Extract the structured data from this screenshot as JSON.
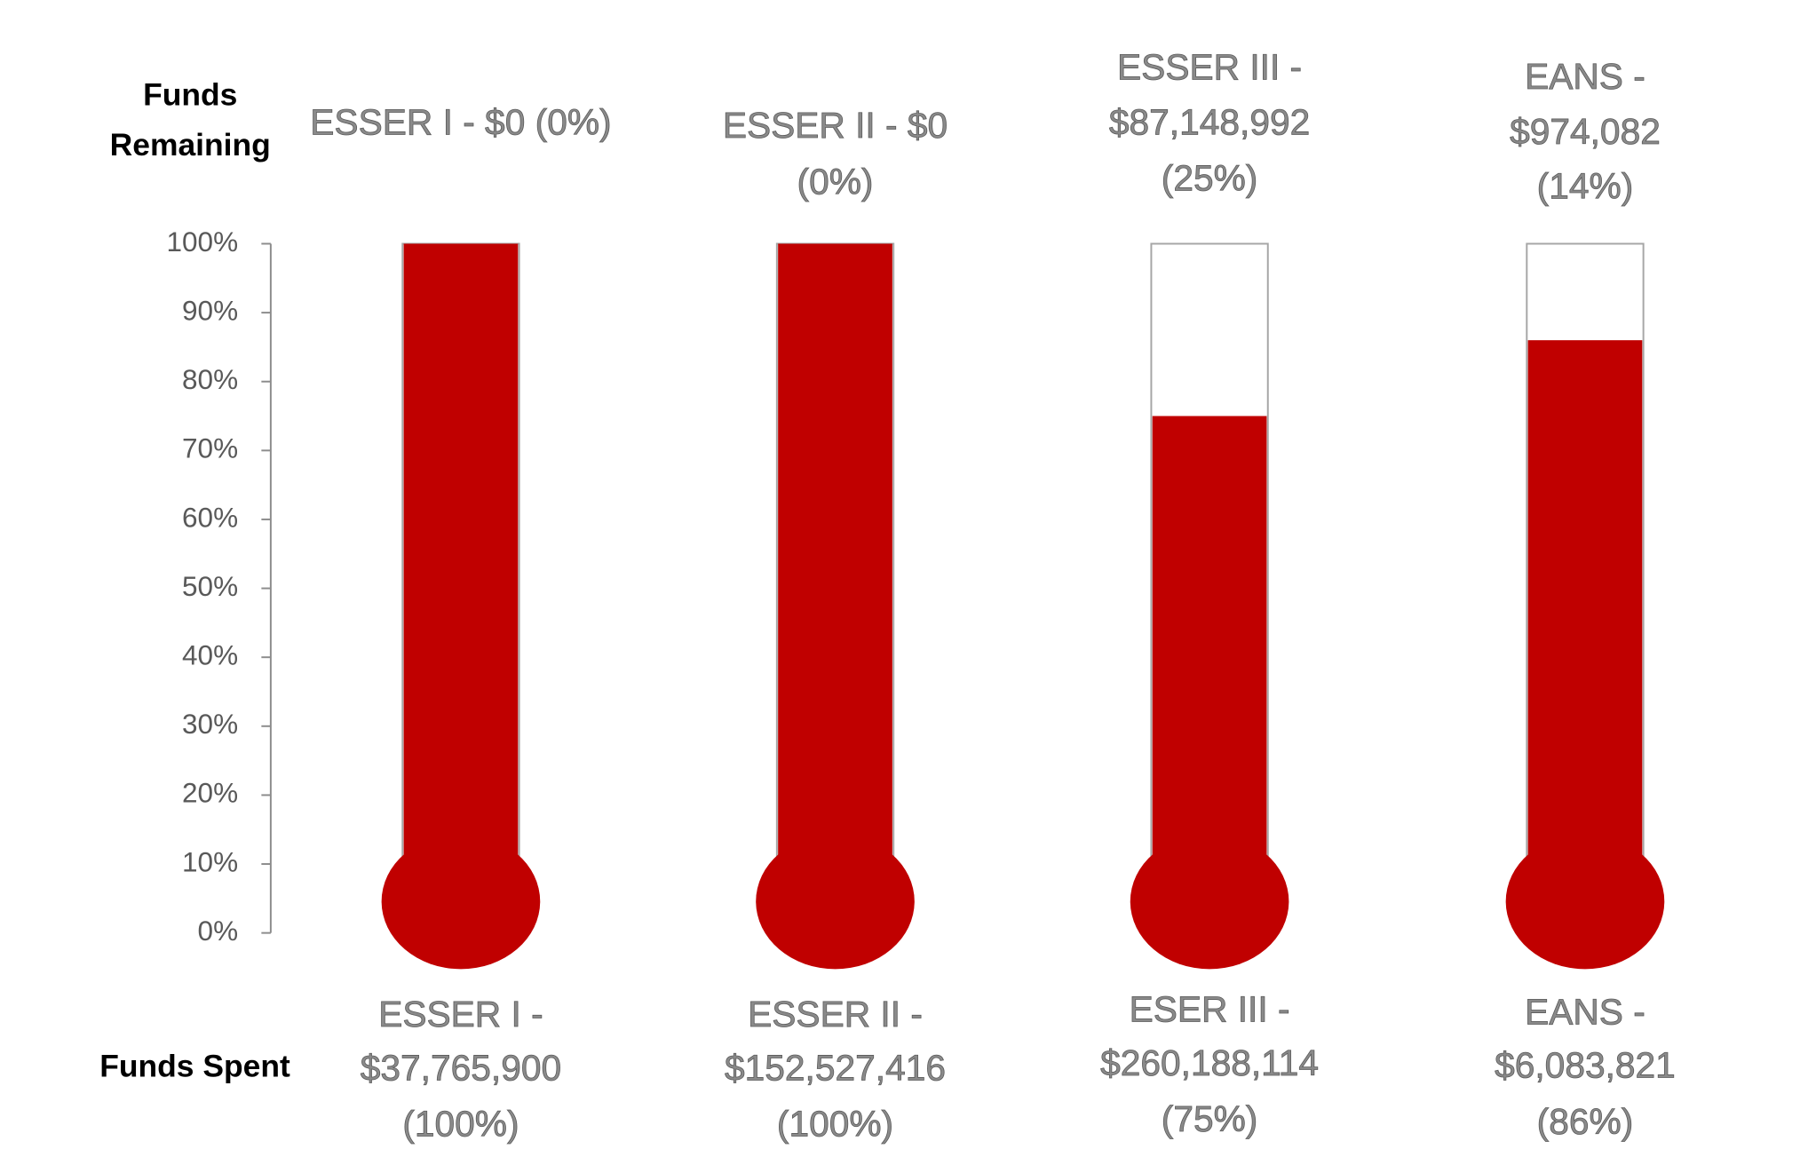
{
  "chart_data": {
    "type": "thermometer",
    "remaining_heading": [
      "Funds",
      "Remaining"
    ],
    "spent_heading": [
      "Funds Spent"
    ],
    "categories": [
      "ESSER I",
      "ESSER II",
      "ESSER III",
      "EANS"
    ],
    "remaining_labels": [
      [
        "ESSER I - $0 (0%)"
      ],
      [
        "ESSER II - $0",
        "(0%)"
      ],
      [
        "ESSER III -",
        "$87,148,992",
        "(25%)"
      ],
      [
        "EANS -",
        "$974,082",
        "(14%)"
      ]
    ],
    "spent_labels": [
      [
        "ESSER I -",
        "$37,765,900",
        "(100%)"
      ],
      [
        "ESSER II -",
        "$152,527,416",
        "(100%)"
      ],
      [
        "ESER III -",
        "$260,188,114",
        "(75%)"
      ],
      [
        "EANS -",
        "$6,083,821",
        "(86%)"
      ]
    ],
    "values": [
      100,
      100,
      75,
      86
    ],
    "color": "#c00000",
    "ylim": [
      0,
      100
    ],
    "yticks": [
      {
        "value": 0,
        "label": "0%"
      },
      {
        "value": 10,
        "label": "10%"
      },
      {
        "value": 20,
        "label": "20%"
      },
      {
        "value": 30,
        "label": "30%"
      },
      {
        "value": 40,
        "label": "40%"
      },
      {
        "value": 50,
        "label": "50%"
      },
      {
        "value": 60,
        "label": "60%"
      },
      {
        "value": 70,
        "label": "70%"
      },
      {
        "value": 80,
        "label": "80%"
      },
      {
        "value": 90,
        "label": "90%"
      },
      {
        "value": 100,
        "label": "100%"
      }
    ]
  }
}
